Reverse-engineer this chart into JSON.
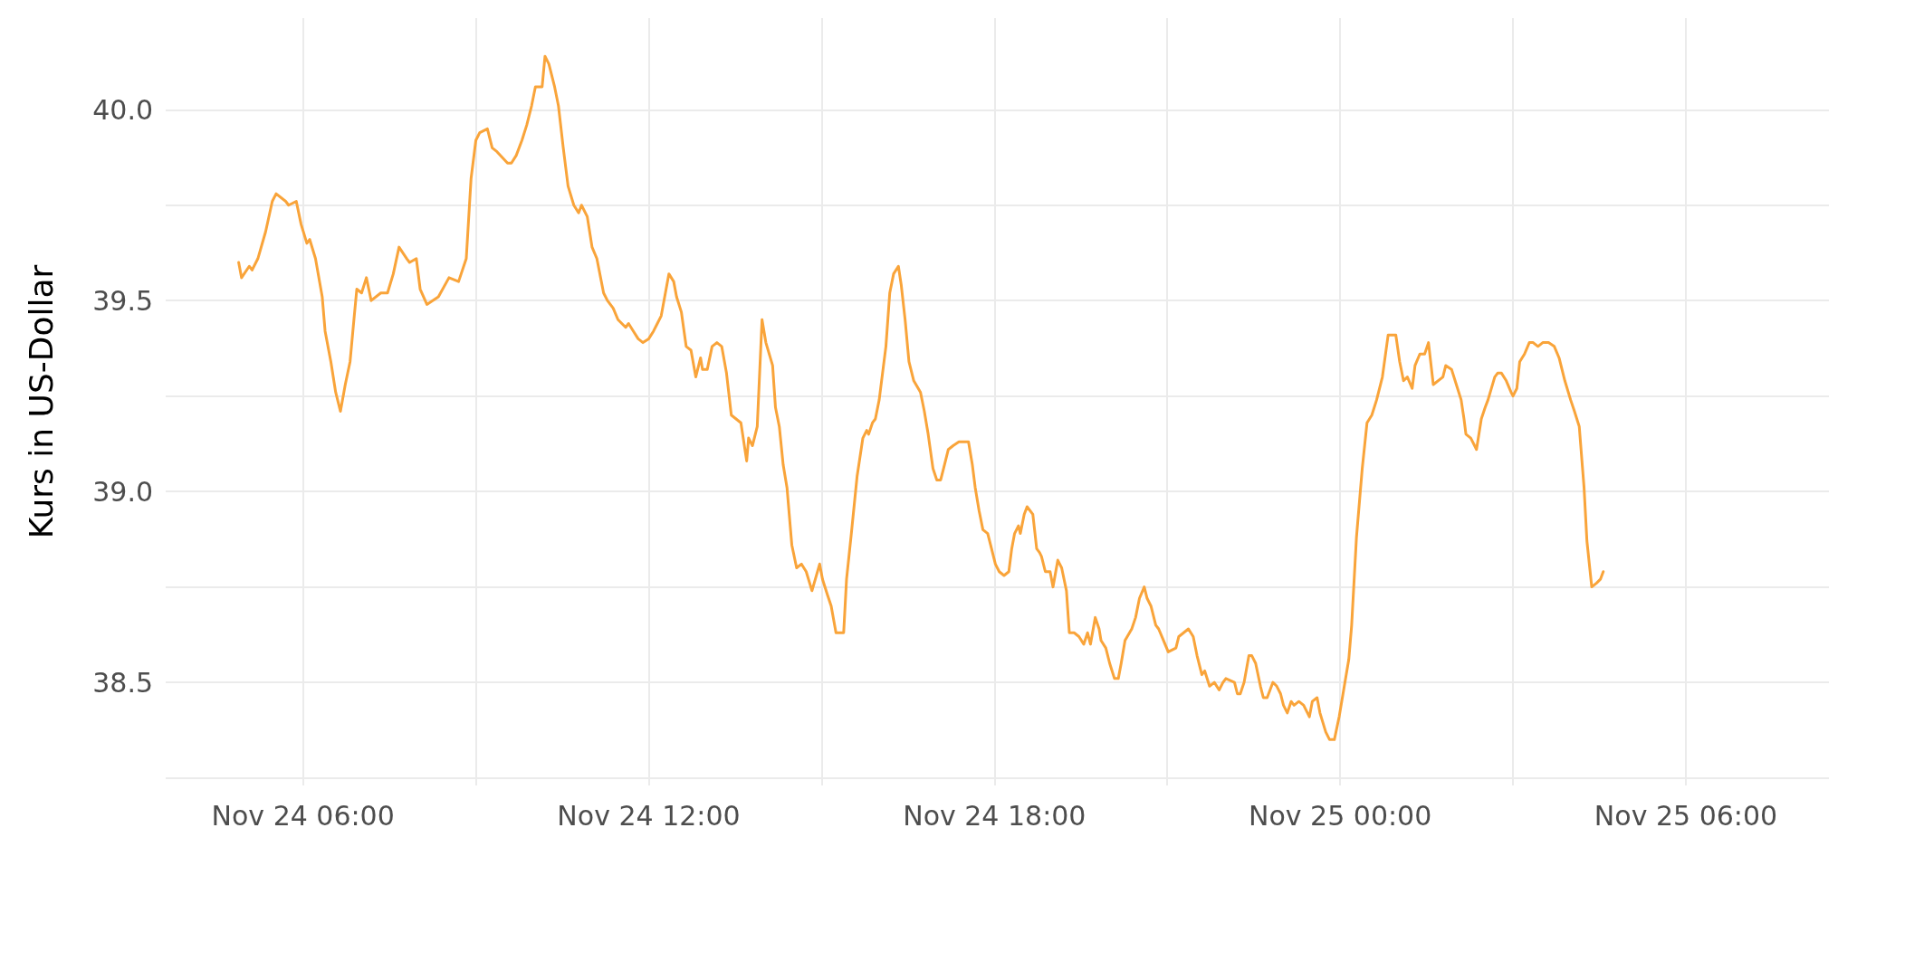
{
  "chart_data": {
    "type": "line",
    "ylabel": "Kurs in US-Dollar",
    "xlim": [
      "--11-24T03:37",
      "--11-25T08:29"
    ],
    "xticks": [
      {
        "value": "--11-24T06:00",
        "label": "Nov 24 06:00"
      },
      {
        "value": "--11-24T09:00",
        "label": null
      },
      {
        "value": "--11-24T12:00",
        "label": "Nov 24 12:00"
      },
      {
        "value": "--11-24T15:00",
        "label": null
      },
      {
        "value": "--11-24T18:00",
        "label": "Nov 24 18:00"
      },
      {
        "value": "--11-24T21:00",
        "label": null
      },
      {
        "value": "--11-25T00:00",
        "label": "Nov 25 00:00"
      },
      {
        "value": "--11-25T03:00",
        "label": null
      },
      {
        "value": "--11-25T06:00",
        "label": "Nov 25 06:00"
      }
    ],
    "ylim": [
      38.23,
      40.24
    ],
    "yticks": [
      {
        "value": 38.25,
        "label": null
      },
      38.5,
      {
        "value": 38.75,
        "label": null
      },
      {
        "value": 39.0,
        "label": "39.0"
      },
      {
        "value": 39.25,
        "label": null
      },
      39.5,
      {
        "value": 39.75,
        "label": null
      },
      {
        "value": 40.0,
        "label": "40.0"
      }
    ],
    "grid": true,
    "marker": "none",
    "line_style": "solid",
    "series": [
      {
        "color": "#f9a43a",
        "x": [
          "--11-24T04:53",
          "--11-24T04:56",
          "--11-24T05:04",
          "--11-24T05:07",
          "--11-24T05:13",
          "--11-24T05:21",
          "--11-24T05:28",
          "--11-24T05:32",
          "--11-24T05:42",
          "--11-24T05:45",
          "--11-24T05:53",
          "--11-24T05:58",
          "--11-24T06:04",
          "--11-24T06:07",
          "--11-24T06:13",
          "--11-24T06:20",
          "--11-24T06:23",
          "--11-24T06:29",
          "--11-24T06:34",
          "--11-24T06:39",
          "--11-24T06:44",
          "--11-24T06:49",
          "--11-24T06:53",
          "--11-24T06:56",
          "--11-24T07:01",
          "--11-24T07:06",
          "--11-24T07:11",
          "--11-24T07:21",
          "--11-24T07:28",
          "--11-24T07:34",
          "--11-24T07:40",
          "--11-24T07:48",
          "--11-24T07:51",
          "--11-24T07:58",
          "--11-24T08:02",
          "--11-24T08:09",
          "--11-24T08:21",
          "--11-24T08:32",
          "--11-24T08:42",
          "--11-24T08:50",
          "--11-24T08:55",
          "--11-24T09:00",
          "--11-24T09:04",
          "--11-24T09:12",
          "--11-24T09:17",
          "--11-24T09:22",
          "--11-24T09:33",
          "--11-24T09:37",
          "--11-24T09:42",
          "--11-24T09:48",
          "--11-24T09:53",
          "--11-24T09:58",
          "--11-24T10:02",
          "--11-24T10:09",
          "--11-24T10:12",
          "--11-24T10:16",
          "--11-24T10:22",
          "--11-24T10:26",
          "--11-24T10:31",
          "--11-24T10:36",
          "--11-24T10:42",
          "--11-24T10:47",
          "--11-24T10:50",
          "--11-24T10:56",
          "--11-24T11:01",
          "--11-24T11:06",
          "--11-24T11:13",
          "--11-24T11:17",
          "--11-24T11:23",
          "--11-24T11:28",
          "--11-24T11:32",
          "--11-24T11:36",
          "--11-24T11:39",
          "--11-24T11:44",
          "--11-24T11:49",
          "--11-24T11:54",
          "--11-24T12:00",
          "--11-24T12:05",
          "--11-24T12:09",
          "--11-24T12:13",
          "--11-24T12:21",
          "--11-24T12:26",
          "--11-24T12:29",
          "--11-24T12:34",
          "--11-24T12:39",
          "--11-24T12:44",
          "--11-24T12:49",
          "--11-24T12:54",
          "--11-24T12:56",
          "--11-24T13:01",
          "--11-24T13:06",
          "--11-24T13:11",
          "--11-24T13:16",
          "--11-24T13:21",
          "--11-24T13:26",
          "--11-24T13:36",
          "--11-24T13:42",
          "--11-24T13:44",
          "--11-24T13:48",
          "--11-24T13:53",
          "--11-24T13:58",
          "--11-24T14:02",
          "--11-24T14:09",
          "--11-24T14:12",
          "--11-24T14:16",
          "--11-24T14:20",
          "--11-24T14:24",
          "--11-24T14:29",
          "--11-24T14:34",
          "--11-24T14:39",
          "--11-24T14:44",
          "--11-24T14:50",
          "--11-24T14:58",
          "--11-24T15:01",
          "--11-24T15:06",
          "--11-24T15:10",
          "--11-24T15:15",
          "--11-24T15:20",
          "--11-24T15:23",
          "--11-24T15:26",
          "--11-24T15:31",
          "--11-24T15:37",
          "--11-24T15:43",
          "--11-24T15:47",
          "--11-24T15:49",
          "--11-24T15:53",
          "--11-24T15:56",
          "--11-24T16:00",
          "--11-24T16:04",
          "--11-24T16:07",
          "--11-24T16:11",
          "--11-24T16:15",
          "--11-24T16:20",
          "--11-24T16:23",
          "--11-24T16:27",
          "--11-24T16:31",
          "--11-24T16:36",
          "--11-24T16:43",
          "--11-24T16:47",
          "--11-24T16:51",
          "--11-24T16:56",
          "--11-24T17:00",
          "--11-24T17:04",
          "--11-24T17:07",
          "--11-24T17:12",
          "--11-24T17:17",
          "--11-24T17:23",
          "--11-24T17:33",
          "--11-24T17:37",
          "--11-24T17:40",
          "--11-24T17:44",
          "--11-24T17:48",
          "--11-24T17:53",
          "--11-24T17:56",
          "--11-24T17:59",
          "--11-24T18:01",
          "--11-24T18:05",
          "--11-24T18:10",
          "--11-24T18:15",
          "--11-24T18:18",
          "--11-24T18:21",
          "--11-24T18:25",
          "--11-24T18:27",
          "--11-24T18:31",
          "--11-24T18:34",
          "--11-24T18:40",
          "--11-24T18:44",
          "--11-24T18:47",
          "--11-24T18:49",
          "--11-24T18:53",
          "--11-24T18:58",
          "--11-24T19:01",
          "--11-24T19:06",
          "--11-24T19:10",
          "--11-24T19:15",
          "--11-24T19:18",
          "--11-24T19:23",
          "--11-24T19:28",
          "--11-24T19:33",
          "--11-24T19:37",
          "--11-24T19:40",
          "--11-24T19:45",
          "--11-24T19:49",
          "--11-24T19:51",
          "--11-24T19:56",
          "--11-24T20:00",
          "--11-24T20:05",
          "--11-24T20:09",
          "--11-24T20:12",
          "--11-24T20:16",
          "--11-24T20:23",
          "--11-24T20:27",
          "--11-24T20:31",
          "--11-24T20:36",
          "--11-24T20:39",
          "--11-24T20:43",
          "--11-24T20:48",
          "--11-24T20:51",
          "--11-24T20:56",
          "--11-24T21:01",
          "--11-24T21:09",
          "--11-24T21:12",
          "--11-24T21:17",
          "--11-24T21:22",
          "--11-24T21:27",
          "--11-24T21:31",
          "--11-24T21:36",
          "--11-24T21:39",
          "--11-24T21:44",
          "--11-24T21:49",
          "--11-24T21:54",
          "--11-24T21:58",
          "--11-24T22:01",
          "--11-24T22:10",
          "--11-24T22:13",
          "--11-24T22:16",
          "--11-24T22:20",
          "--11-24T22:25",
          "--11-24T22:28",
          "--11-24T22:32",
          "--11-24T22:37",
          "--11-24T22:40",
          "--11-24T22:44",
          "--11-24T22:50",
          "--11-24T22:54",
          "--11-24T22:58",
          "--11-24T23:01",
          "--11-24T23:05",
          "--11-24T23:09",
          "--11-24T23:12",
          "--11-24T23:17",
          "--11-24T23:22",
          "--11-24T23:26",
          "--11-24T23:28",
          "--11-24T23:31",
          "--11-24T23:36",
          "--11-24T23:39",
          "--11-24T23:45",
          "--11-24T23:49",
          "--11-24T23:54",
          "--11-24T23:59",
          "--11-25T00:05",
          "--11-25T00:09",
          "--11-25T00:12",
          "--11-25T00:17",
          "--11-25T00:23",
          "--11-25T00:28",
          "--11-25T00:33",
          "--11-25T00:38",
          "--11-25T00:44",
          "--11-25T00:50",
          "--11-25T00:58",
          "--11-25T01:02",
          "--11-25T01:06",
          "--11-25T01:10",
          "--11-25T01:15",
          "--11-25T01:18",
          "--11-25T01:23",
          "--11-25T01:28",
          "--11-25T01:32",
          "--11-25T01:37",
          "--11-25T01:47",
          "--11-25T01:50",
          "--11-25T01:56",
          "--11-25T02:01",
          "--11-25T02:06",
          "--11-25T02:09",
          "--11-25T02:11",
          "--11-25T02:16",
          "--11-25T02:20",
          "--11-25T02:22",
          "--11-25T02:27",
          "--11-25T02:31",
          "--11-25T02:34",
          "--11-25T02:41",
          "--11-25T02:44",
          "--11-25T02:48",
          "--11-25T02:53",
          "--11-25T02:58",
          "--11-25T03:00",
          "--11-25T03:04",
          "--11-25T03:07",
          "--11-25T03:12",
          "--11-25T03:17",
          "--11-25T03:21",
          "--11-25T03:26",
          "--11-25T03:31",
          "--11-25T03:37",
          "--11-25T03:43",
          "--11-25T03:48",
          "--11-25T03:54",
          "--11-25T04:00",
          "--11-25T04:04",
          "--11-25T04:09",
          "--11-25T04:14",
          "--11-25T04:17",
          "--11-25T04:22",
          "--11-25T04:27",
          "--11-25T04:31",
          "--11-25T04:34"
        ],
        "values": [
          39.6,
          39.56,
          39.59,
          39.58,
          39.61,
          39.68,
          39.76,
          39.78,
          39.76,
          39.75,
          39.76,
          39.7,
          39.65,
          39.66,
          39.61,
          39.51,
          39.42,
          39.34,
          39.26,
          39.21,
          39.28,
          39.34,
          39.45,
          39.53,
          39.52,
          39.56,
          39.5,
          39.52,
          39.52,
          39.57,
          39.64,
          39.61,
          39.6,
          39.61,
          39.53,
          39.49,
          39.51,
          39.56,
          39.55,
          39.61,
          39.82,
          39.92,
          39.94,
          39.95,
          39.9,
          39.89,
          39.86,
          39.86,
          39.88,
          39.92,
          39.96,
          40.01,
          40.06,
          40.06,
          40.14,
          40.12,
          40.06,
          40.01,
          39.9,
          39.8,
          39.75,
          39.73,
          39.75,
          39.72,
          39.64,
          39.61,
          39.52,
          39.5,
          39.48,
          39.45,
          39.44,
          39.43,
          39.44,
          39.42,
          39.4,
          39.39,
          39.4,
          39.42,
          39.44,
          39.46,
          39.57,
          39.55,
          39.51,
          39.47,
          39.38,
          39.37,
          39.3,
          39.35,
          39.32,
          39.32,
          39.38,
          39.39,
          39.38,
          39.31,
          39.2,
          39.18,
          39.08,
          39.14,
          39.12,
          39.17,
          39.45,
          39.39,
          39.33,
          39.22,
          39.17,
          39.07,
          39.01,
          38.86,
          38.8,
          38.81,
          38.79,
          38.74,
          38.81,
          38.77,
          38.73,
          38.7,
          38.63,
          38.63,
          38.63,
          38.77,
          38.89,
          39.04,
          39.14,
          39.16,
          39.15,
          39.18,
          39.19,
          39.24,
          39.32,
          39.38,
          39.52,
          39.57,
          39.59,
          39.54,
          39.45,
          39.34,
          39.29,
          39.26,
          39.21,
          39.15,
          39.06,
          39.03,
          39.03,
          39.06,
          39.11,
          39.12,
          39.13,
          39.13,
          39.07,
          39.01,
          38.95,
          38.9,
          38.89,
          38.86,
          38.83,
          38.81,
          38.79,
          38.78,
          38.79,
          38.85,
          38.89,
          38.91,
          38.89,
          38.94,
          38.96,
          38.94,
          38.85,
          38.84,
          38.83,
          38.79,
          38.79,
          38.75,
          38.82,
          38.8,
          38.74,
          38.63,
          38.63,
          38.62,
          38.6,
          38.63,
          38.6,
          38.67,
          38.64,
          38.61,
          38.59,
          38.55,
          38.51,
          38.51,
          38.55,
          38.61,
          38.64,
          38.67,
          38.72,
          38.75,
          38.72,
          38.7,
          38.65,
          38.64,
          38.61,
          38.58,
          38.59,
          38.62,
          38.63,
          38.64,
          38.62,
          38.57,
          38.52,
          38.53,
          38.49,
          38.5,
          38.48,
          38.5,
          38.51,
          38.5,
          38.47,
          38.47,
          38.5,
          38.57,
          38.57,
          38.55,
          38.49,
          38.46,
          38.46,
          38.5,
          38.49,
          38.47,
          38.44,
          38.42,
          38.45,
          38.44,
          38.45,
          38.44,
          38.42,
          38.41,
          38.45,
          38.46,
          38.42,
          38.37,
          38.35,
          38.35,
          38.41,
          38.5,
          38.56,
          38.65,
          38.88,
          39.06,
          39.18,
          39.2,
          39.24,
          39.3,
          39.41,
          39.41,
          39.34,
          39.29,
          39.3,
          39.27,
          39.33,
          39.36,
          39.36,
          39.39,
          39.28,
          39.3,
          39.33,
          39.32,
          39.28,
          39.24,
          39.19,
          39.15,
          39.14,
          39.12,
          39.11,
          39.19,
          39.22,
          39.24,
          39.3,
          39.31,
          39.31,
          39.29,
          39.26,
          39.25,
          39.27,
          39.34,
          39.36,
          39.39,
          39.39,
          39.38,
          39.39,
          39.39,
          39.38,
          39.35,
          39.29,
          39.24,
          39.21,
          39.17,
          39.01,
          38.87,
          38.75,
          38.76,
          38.77,
          38.79
        ]
      }
    ]
  }
}
